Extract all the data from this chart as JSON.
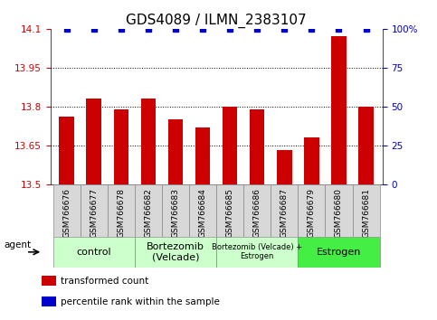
{
  "title": "GDS4089 / ILMN_2383107",
  "samples": [
    "GSM766676",
    "GSM766677",
    "GSM766678",
    "GSM766682",
    "GSM766683",
    "GSM766684",
    "GSM766685",
    "GSM766686",
    "GSM766687",
    "GSM766679",
    "GSM766680",
    "GSM766681"
  ],
  "bar_values": [
    13.76,
    13.83,
    13.79,
    13.83,
    13.75,
    13.72,
    13.8,
    13.79,
    13.63,
    13.68,
    14.07,
    13.8
  ],
  "bar_color": "#cc0000",
  "dot_color": "#0000cc",
  "ylim_left": [
    13.5,
    14.1
  ],
  "ylim_right": [
    0,
    100
  ],
  "yticks_left": [
    13.5,
    13.65,
    13.8,
    13.95,
    14.1
  ],
  "yticks_right": [
    0,
    25,
    50,
    75,
    100
  ],
  "groups": [
    {
      "label": "control",
      "start": 0,
      "end": 3,
      "color": "#ccffcc",
      "fontsize": 8
    },
    {
      "label": "Bortezomib\n(Velcade)",
      "start": 3,
      "end": 6,
      "color": "#ccffcc",
      "fontsize": 8
    },
    {
      "label": "Bortezomib (Velcade) +\nEstrogen",
      "start": 6,
      "end": 9,
      "color": "#ccffcc",
      "fontsize": 6
    },
    {
      "label": "Estrogen",
      "start": 9,
      "end": 12,
      "color": "#44ee44",
      "fontsize": 8
    }
  ],
  "agent_label": "agent",
  "legend_items": [
    {
      "label": "transformed count",
      "color": "#cc0000"
    },
    {
      "label": "percentile rank within the sample",
      "color": "#0000cc"
    }
  ],
  "title_fontsize": 11,
  "tick_fontsize": 7.5,
  "label_fontsize": 6.5,
  "bar_width": 0.55,
  "dot_size": 4,
  "sample_box_color": "#d8d8d8",
  "background_color": "#ffffff"
}
